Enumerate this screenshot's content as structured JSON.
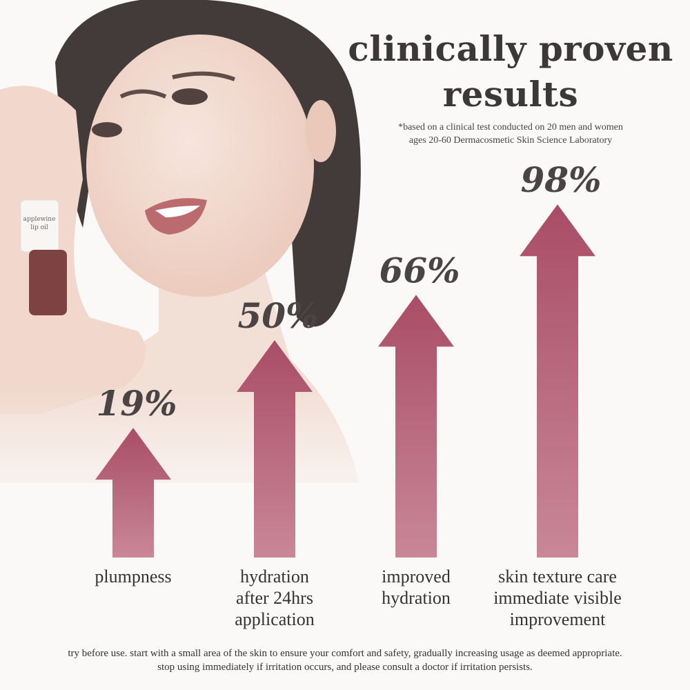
{
  "header": {
    "title": "clinically proven results",
    "note_line1": "*based on a clinical test conducted on 20 men and women",
    "note_line2": "ages 20-60 Dermacosmetic Skin Science Laboratory"
  },
  "product": {
    "label": "applewine lip oil"
  },
  "chart_data": {
    "type": "bar",
    "style": "upward arrows",
    "categories": [
      "plumpness",
      "hydration after 24hrs application",
      "improved hydration",
      "skin texture care immediate visible improvement"
    ],
    "category_lines": [
      [
        "plumpness"
      ],
      [
        "hydration",
        "after 24hrs",
        "application"
      ],
      [
        "improved",
        "hydration"
      ],
      [
        "skin texture care",
        "immediate visible",
        "improvement"
      ]
    ],
    "values": [
      19,
      50,
      66,
      98
    ],
    "data_labels": [
      "19%",
      "50%",
      "66%",
      "98%"
    ],
    "unit": "%",
    "ylim": [
      0,
      100
    ],
    "grid": false,
    "colors": {
      "arrow_top": "#a94d66",
      "arrow_bottom": "#c98797"
    }
  },
  "footer": {
    "line1": "try before use. start with a small area of the skin to ensure your comfort and safety, gradually increasing usage as deemed appropriate.",
    "line2": "stop using immediately if irritation occurs, and please consult a doctor if irritation persists."
  }
}
